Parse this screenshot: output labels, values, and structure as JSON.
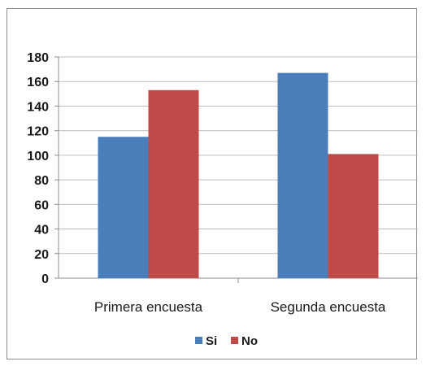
{
  "chart_data": {
    "type": "bar",
    "categories": [
      "Primera encuesta",
      "Segunda encuesta"
    ],
    "series": [
      {
        "name": "Si",
        "values": [
          115,
          167
        ],
        "color": "#4a7ebb"
      },
      {
        "name": "No",
        "values": [
          153,
          101
        ],
        "color": "#be4b48"
      }
    ],
    "y_ticks": [
      "0",
      "20",
      "40",
      "60",
      "80",
      "100",
      "120",
      "140",
      "160",
      "180"
    ],
    "ylim": [
      0,
      180
    ],
    "grid": true,
    "legend_position": "bottom"
  }
}
